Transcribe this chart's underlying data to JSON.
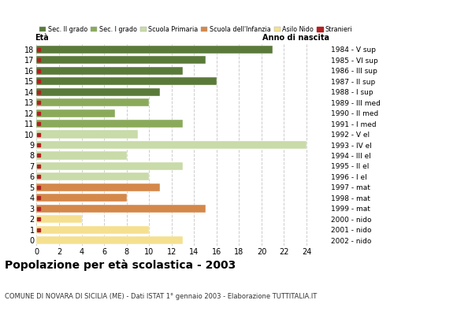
{
  "ages": [
    18,
    17,
    16,
    15,
    14,
    13,
    12,
    11,
    10,
    9,
    8,
    7,
    6,
    5,
    4,
    3,
    2,
    1,
    0
  ],
  "years": [
    "1984 - V sup",
    "1985 - VI sup",
    "1986 - III sup",
    "1987 - II sup",
    "1988 - I sup",
    "1989 - III med",
    "1990 - II med",
    "1991 - I med",
    "1992 - V el",
    "1993 - IV el",
    "1994 - III el",
    "1995 - II el",
    "1996 - I el",
    "1997 - mat",
    "1998 - mat",
    "1999 - mat",
    "2000 - nido",
    "2001 - nido",
    "2002 - nido"
  ],
  "values": [
    21,
    15,
    13,
    16,
    11,
    10,
    7,
    13,
    9,
    24,
    8,
    13,
    10,
    11,
    8,
    15,
    4,
    10,
    13
  ],
  "stranieri": [
    1,
    1,
    1,
    1,
    1,
    1,
    1,
    1,
    1,
    1,
    1,
    1,
    1,
    1,
    1,
    1,
    1,
    1,
    0
  ],
  "colors": {
    "Sec. II grado": "#5a7a3a",
    "Sec. I grado": "#8aaa5a",
    "Scuola Primaria": "#c8dba8",
    "Scuola dell'Infanzia": "#d4884a",
    "Asilo Nido": "#f5e090",
    "Stranieri": "#b22222"
  },
  "bar_colors": [
    "#5a7a3a",
    "#5a7a3a",
    "#5a7a3a",
    "#5a7a3a",
    "#5a7a3a",
    "#8aaa5a",
    "#8aaa5a",
    "#8aaa5a",
    "#c8dba8",
    "#c8dba8",
    "#c8dba8",
    "#c8dba8",
    "#c8dba8",
    "#d4884a",
    "#d4884a",
    "#d4884a",
    "#f5e090",
    "#f5e090",
    "#f5e090"
  ],
  "title": "Popolazione per età scolastica - 2003",
  "subtitle": "COMUNE DI NOVARA DI SICILIA (ME) - Dati ISTAT 1° gennaio 2003 - Elaborazione TUTTITALIA.IT",
  "xlabel_left": "Età",
  "xlabel_right": "Anno di nascita",
  "xlim": [
    0,
    26
  ],
  "xticks": [
    0,
    2,
    4,
    6,
    8,
    10,
    12,
    14,
    16,
    18,
    20,
    22,
    24
  ],
  "legend_labels": [
    "Sec. II grado",
    "Sec. I grado",
    "Scuola Primaria",
    "Scuola dell'Infanzia",
    "Asilo Nido",
    "Stranieri"
  ],
  "legend_colors": [
    "#5a7a3a",
    "#8aaa5a",
    "#c8dba8",
    "#d4884a",
    "#f5e090",
    "#b22222"
  ],
  "background_color": "#ffffff",
  "grid_color": "#cccccc"
}
